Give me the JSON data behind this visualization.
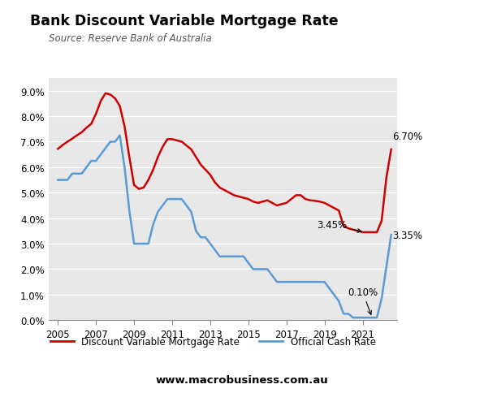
{
  "title": "Bank Discount Variable Mortgage Rate",
  "source": "Source: Reserve Bank of Australia",
  "website": "www.macrobusiness.com.au",
  "background_color": "#e8e8e8",
  "outer_background": "#ffffff",
  "ylim": [
    0.0,
    0.095
  ],
  "yticks": [
    0.0,
    0.01,
    0.02,
    0.03,
    0.04,
    0.05,
    0.06,
    0.07,
    0.08,
    0.09
  ],
  "ytick_labels": [
    "0.0%",
    "1.0%",
    "2.0%",
    "3.0%",
    "4.0%",
    "5.0%",
    "6.0%",
    "7.0%",
    "8.0%",
    "9.0%"
  ],
  "mortgage_color": "#cc0000",
  "cash_color": "#5b9bd5",
  "mortgage_label": "Discount Variable Mortgage Rate",
  "cash_label": "Official Cash Rate",
  "annotation_345": "3.45%",
  "annotation_670": "6.70%",
  "annotation_010": "0.10%",
  "annotation_335": "3.35%",
  "mortgage_data": {
    "years": [
      2005.0,
      2005.25,
      2005.5,
      2005.75,
      2006.0,
      2006.25,
      2006.5,
      2006.75,
      2007.0,
      2007.25,
      2007.5,
      2007.75,
      2008.0,
      2008.25,
      2008.5,
      2008.75,
      2009.0,
      2009.25,
      2009.5,
      2009.75,
      2010.0,
      2010.25,
      2010.5,
      2010.75,
      2011.0,
      2011.25,
      2011.5,
      2011.75,
      2012.0,
      2012.25,
      2012.5,
      2012.75,
      2013.0,
      2013.25,
      2013.5,
      2013.75,
      2014.0,
      2014.25,
      2014.5,
      2014.75,
      2015.0,
      2015.25,
      2015.5,
      2015.75,
      2016.0,
      2016.25,
      2016.5,
      2016.75,
      2017.0,
      2017.25,
      2017.5,
      2017.75,
      2018.0,
      2018.25,
      2018.5,
      2018.75,
      2019.0,
      2019.25,
      2019.5,
      2019.75,
      2020.0,
      2020.25,
      2020.5,
      2020.75,
      2021.0,
      2021.25,
      2021.5,
      2021.75,
      2022.0,
      2022.25,
      2022.5
    ],
    "values": [
      0.0672,
      0.0687,
      0.07,
      0.0712,
      0.0725,
      0.0737,
      0.0755,
      0.077,
      0.081,
      0.086,
      0.089,
      0.0885,
      0.087,
      0.084,
      0.076,
      0.064,
      0.053,
      0.0515,
      0.052,
      0.055,
      0.059,
      0.064,
      0.068,
      0.071,
      0.071,
      0.0705,
      0.07,
      0.0685,
      0.067,
      0.064,
      0.061,
      0.059,
      0.057,
      0.054,
      0.052,
      0.051,
      0.05,
      0.049,
      0.0485,
      0.048,
      0.0475,
      0.0465,
      0.046,
      0.0465,
      0.047,
      0.046,
      0.045,
      0.0455,
      0.046,
      0.0475,
      0.049,
      0.049,
      0.0475,
      0.047,
      0.0468,
      0.0465,
      0.046,
      0.045,
      0.044,
      0.043,
      0.037,
      0.036,
      0.0355,
      0.035,
      0.0345,
      0.0345,
      0.0345,
      0.0345,
      0.039,
      0.056,
      0.067
    ]
  },
  "cash_data": {
    "years": [
      2005.0,
      2005.25,
      2005.5,
      2005.75,
      2006.0,
      2006.25,
      2006.5,
      2006.75,
      2007.0,
      2007.25,
      2007.5,
      2007.75,
      2008.0,
      2008.25,
      2008.5,
      2008.75,
      2009.0,
      2009.25,
      2009.5,
      2009.75,
      2010.0,
      2010.25,
      2010.5,
      2010.75,
      2011.0,
      2011.25,
      2011.5,
      2011.75,
      2012.0,
      2012.25,
      2012.5,
      2012.75,
      2013.0,
      2013.25,
      2013.5,
      2013.75,
      2014.0,
      2014.25,
      2014.5,
      2014.75,
      2015.0,
      2015.25,
      2015.5,
      2015.75,
      2016.0,
      2016.25,
      2016.5,
      2016.75,
      2017.0,
      2017.25,
      2017.5,
      2017.75,
      2018.0,
      2018.25,
      2018.5,
      2018.75,
      2019.0,
      2019.25,
      2019.5,
      2019.75,
      2020.0,
      2020.25,
      2020.5,
      2020.75,
      2021.0,
      2021.25,
      2021.5,
      2021.75,
      2022.0,
      2022.25,
      2022.5
    ],
    "values": [
      0.055,
      0.055,
      0.055,
      0.0575,
      0.0575,
      0.0575,
      0.06,
      0.0625,
      0.0625,
      0.065,
      0.0675,
      0.07,
      0.07,
      0.0725,
      0.06,
      0.043,
      0.03,
      0.03,
      0.03,
      0.03,
      0.0375,
      0.0425,
      0.045,
      0.0475,
      0.0475,
      0.0475,
      0.0475,
      0.045,
      0.0425,
      0.035,
      0.0325,
      0.0325,
      0.03,
      0.0275,
      0.025,
      0.025,
      0.025,
      0.025,
      0.025,
      0.025,
      0.0225,
      0.02,
      0.02,
      0.02,
      0.02,
      0.0175,
      0.015,
      0.015,
      0.015,
      0.015,
      0.015,
      0.015,
      0.015,
      0.015,
      0.015,
      0.015,
      0.015,
      0.0125,
      0.01,
      0.0075,
      0.0025,
      0.0025,
      0.001,
      0.001,
      0.001,
      0.001,
      0.001,
      0.001,
      0.0085,
      0.021,
      0.0335
    ]
  },
  "macro_box_color": "#cc1111",
  "macro_text_color": "#ffffff",
  "xticks": [
    2005,
    2007,
    2009,
    2011,
    2013,
    2015,
    2017,
    2019,
    2021
  ]
}
